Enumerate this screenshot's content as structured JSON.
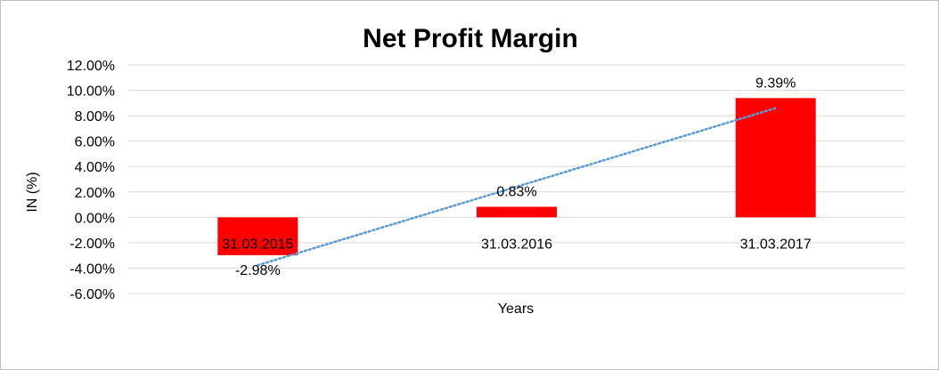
{
  "chart_data": {
    "type": "bar",
    "title": "Net Profit Margin",
    "xlabel": "Years",
    "ylabel": "IN (%)",
    "categories": [
      "31.03.2015",
      "31.03.2016",
      "31.03.2017"
    ],
    "values": [
      -2.98,
      0.83,
      9.39
    ],
    "data_labels": [
      "-2.98%",
      "0.83%",
      "9.39%"
    ],
    "y_ticks": [
      "12.00%",
      "10.00%",
      "8.00%",
      "6.00%",
      "4.00%",
      "2.00%",
      "0.00%",
      "-2.00%",
      "-4.00%",
      "-6.00%"
    ],
    "y_tick_values": [
      12,
      10,
      8,
      6,
      4,
      2,
      0,
      -2,
      -4,
      -6
    ],
    "ylim": [
      -6,
      12
    ],
    "grid": true,
    "legend": "none",
    "trendline": {
      "type": "linear",
      "style": "dotted"
    },
    "colors": {
      "bar": "#ff0000",
      "trendline": "#5b9bd5",
      "grid": "#d9d9d9",
      "axis": "#bfbfbf"
    }
  }
}
